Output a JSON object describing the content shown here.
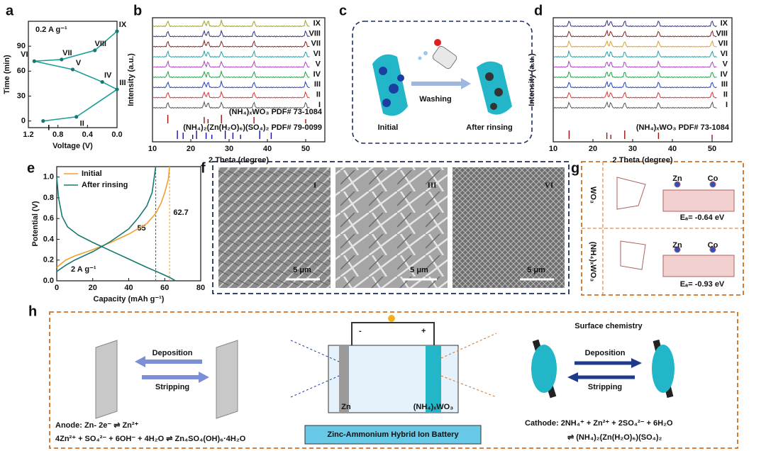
{
  "panels": {
    "a": {
      "letter": "a",
      "type": "line",
      "annotation": "0.2 A g⁻¹",
      "xlabel": "Voltage (V)",
      "ylabel": "Time (min)",
      "x": [
        1.0,
        0.55,
        0.0,
        0.2,
        0.6,
        1.12,
        0.75,
        0.3,
        0.0
      ],
      "values": [
        0,
        5,
        38,
        47,
        62,
        72,
        74,
        85,
        108
      ],
      "point_labels": [
        "I",
        "II",
        "III",
        "IV",
        "V",
        "VI",
        "VII",
        "VIII",
        "IX"
      ],
      "color": "#1a9e96",
      "xlim": [
        1.2,
        0.0
      ],
      "xticks": [
        1.2,
        0.8,
        0.4,
        {
          "value": 0,
          "label": "0.0"
        }
      ],
      "ylim": [
        -8,
        120
      ],
      "yticks": [
        0,
        30,
        60,
        90
      ]
    },
    "b": {
      "letter": "b",
      "xlabel": "2 Theta (degree)",
      "ylabel": "Intensity (a.u.)",
      "xlim": [
        10,
        55
      ],
      "xticks": [
        10,
        20,
        30,
        40,
        50
      ],
      "trace_labels": [
        "I",
        "II",
        "III",
        "IV",
        "V",
        "VI",
        "VII",
        "VIII",
        "IX"
      ],
      "trace_colors": [
        "#555555",
        "#e03030",
        "#2040c0",
        "#20a040",
        "#b040c0",
        "#20a0a0",
        "#8a2020",
        "#303080",
        "#a0a020"
      ],
      "peak_positions": [
        14,
        23.5,
        24.5,
        28,
        36.5,
        50
      ],
      "references": [
        {
          "label": "(NH₄)ₓWO₃ PDF# 73-1084",
          "color": "#a01010"
        },
        {
          "label": "(NH₄)₂(Zn(H₂O)₆)(SO₄)₂ PDF# 79-0099",
          "color": "#1010a0"
        }
      ],
      "ref2_peaks": [
        16.5,
        18,
        20.5,
        21.5,
        24,
        25.5,
        29,
        31,
        33,
        38,
        41
      ]
    },
    "c": {
      "letter": "c",
      "action": "Washing",
      "left": "Initial",
      "right": "After rinsing"
    },
    "d": {
      "letter": "d",
      "xlabel": "2 Theta (degree)",
      "ylabel": "Intensity (a.u.)",
      "xlim": [
        10,
        55
      ],
      "xticks": [
        10,
        20,
        30,
        40,
        50
      ],
      "trace_labels": [
        "I",
        "II",
        "III",
        "IV",
        "V",
        "VI",
        "VII",
        "VIII",
        "IX"
      ],
      "trace_colors": [
        "#555555",
        "#e03030",
        "#2040c0",
        "#20a040",
        "#b040c0",
        "#20a0a0",
        "#e0a020",
        "#8a2020",
        "#303080"
      ],
      "peak_positions": [
        14,
        23.5,
        24.5,
        28,
        36.5,
        50
      ],
      "reference": {
        "label": "(NH₄)ₓWO₃ PDF# 73-1084",
        "color": "#a01010"
      }
    },
    "e": {
      "letter": "e",
      "type": "line",
      "xlabel": "Capacity (mAh g⁻¹)",
      "ylabel": "Potential (V)",
      "annotation": "2 A g⁻¹",
      "xlim": [
        0,
        80
      ],
      "xticks": [
        0,
        20,
        40,
        60,
        80
      ],
      "ylim": [
        0,
        1.1
      ],
      "yticks": [
        {
          "value": 0,
          "label": "0.0"
        },
        0.2,
        0.4,
        0.6,
        0.8,
        {
          "value": 1,
          "label": "1.0"
        }
      ],
      "series": [
        {
          "name": "Initial",
          "color": "#f0a030",
          "x": [
            0,
            5,
            10,
            20,
            30,
            40,
            50,
            55,
            58,
            60,
            62,
            62.7
          ],
          "values": [
            0.13,
            0.2,
            0.24,
            0.3,
            0.37,
            0.45,
            0.55,
            0.65,
            0.75,
            0.85,
            0.98,
            1.1
          ]
        },
        {
          "name": "After rinsing",
          "color": "#17786f",
          "x": [
            0,
            1,
            3,
            6,
            12,
            20,
            30,
            40,
            50,
            58,
            63,
            66,
            null,
            0,
            5,
            10,
            20,
            30,
            40,
            45,
            50,
            53,
            55
          ],
          "values": [
            1.0,
            0.8,
            0.62,
            0.52,
            0.44,
            0.37,
            0.29,
            0.21,
            0.13,
            0.07,
            0.03,
            0.0,
            null,
            0.09,
            0.15,
            0.2,
            0.28,
            0.38,
            0.5,
            0.6,
            0.72,
            0.85,
            1.1
          ]
        }
      ],
      "markers": [
        55,
        62.7
      ],
      "marker_colors": [
        "#17786f",
        "#f0a030"
      ]
    },
    "f": {
      "letter": "f",
      "images": [
        {
          "label": "I",
          "scale": "5 μm"
        },
        {
          "label": "III",
          "scale": "5 μm"
        },
        {
          "label": "VI",
          "scale": "5 μm"
        }
      ]
    },
    "g": {
      "letter": "g",
      "rows": [
        {
          "material": "WO₃",
          "energy": "Eₐ= -0.64 eV"
        },
        {
          "material": "(NH₄)ₓWO₃",
          "energy": "Eₐ= -0.93 eV"
        }
      ],
      "atoms": [
        "Zn",
        "Co"
      ]
    },
    "h": {
      "letter": "h",
      "deposition": "Deposition",
      "stripping": "Stripping",
      "title": "Surface chemistry",
      "battery": "Zinc-Ammonium Hybrid Ion Battery",
      "minus": "-",
      "plus": "+",
      "anode_label": "Zn",
      "cathode_label": "(NH₄)ₓWO₃",
      "anode_eq": [
        "Anode: Zn- 2e⁻ ⇌ Zn²⁺",
        "4Zn²⁺ + SO₄²⁻ + 6OH⁻ + 4H₂O ⇌ Zn₄SO₄(OH)₆·4H₂O"
      ],
      "cathode_eq": [
        "Cathode: 2NH₄⁺ + Zn²⁺ + 2SO₄²⁻ + 6H₂O",
        "⇌ (NH₄)₂(Zn(H₂O)₆)(SO₄)₂"
      ]
    }
  }
}
